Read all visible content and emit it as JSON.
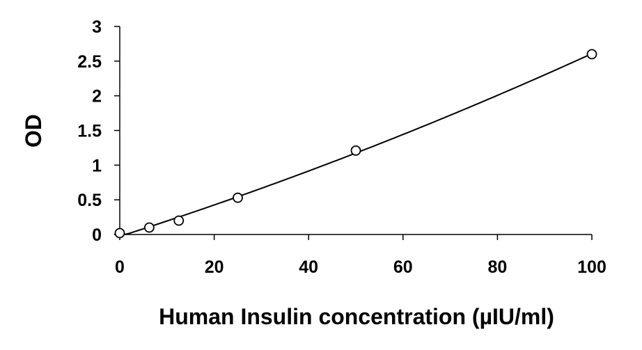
{
  "chart_data": {
    "type": "scatter",
    "title": "",
    "xlabel": "Human Insulin concentration (µIU/ml)",
    "ylabel": "OD",
    "xlim": [
      0,
      100
    ],
    "ylim": [
      0,
      3
    ],
    "x_ticks": [
      "0",
      "20",
      "40",
      "60",
      "80",
      "100"
    ],
    "y_ticks": [
      "0",
      "0.5",
      "1",
      "1.5",
      "2",
      "2.5",
      "3"
    ],
    "grid": false,
    "legend": "none",
    "series": [
      {
        "x": [
          0,
          6.25,
          12.5,
          25,
          50,
          100
        ],
        "y": [
          0.02,
          0.1,
          0.2,
          0.53,
          1.21,
          2.6
        ],
        "marker": "open-circle",
        "fit": "smooth-line"
      }
    ],
    "colors": {
      "line": "#000000",
      "marker_fill": "#ffffff",
      "marker_stroke": "#000000"
    }
  }
}
